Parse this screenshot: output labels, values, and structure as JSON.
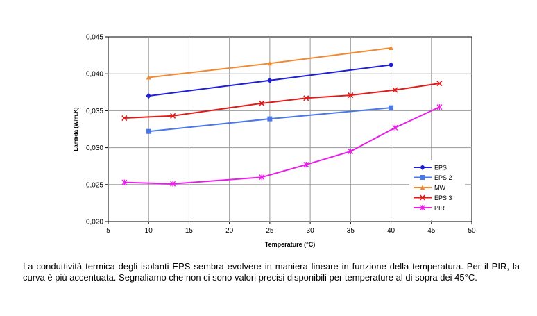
{
  "caption": "La conduttività termica degli isolanti EPS sembra evolvere in maniera lineare in funzione della temperatura. Per il PIR, la curva è più accentuata. Segnaliamo che non ci sono valori precisi disponibili per temperature al di sopra dei 45°C.",
  "chart_data": {
    "type": "line",
    "title": "",
    "xlabel": "Temperature (°C)",
    "ylabel": "Lambda (W/m.K)",
    "xlim": [
      5,
      50
    ],
    "ylim": [
      0.02,
      0.045
    ],
    "xticks": [
      5,
      10,
      15,
      20,
      25,
      30,
      35,
      40,
      45,
      50
    ],
    "yticks": [
      0.02,
      0.025,
      0.03,
      0.035,
      0.04,
      0.045
    ],
    "xtick_labels": [
      "5",
      "10",
      "15",
      "20",
      "25",
      "30",
      "35",
      "40",
      "45",
      "50"
    ],
    "ytick_labels": [
      "0,020",
      "0,025",
      "0,030",
      "0,035",
      "0,040",
      "0,045"
    ],
    "grid": true,
    "legend": "bottom-right",
    "series": [
      {
        "name": "EPS",
        "color": "#1f1fd6",
        "marker": "diamond",
        "x": [
          10,
          25,
          40
        ],
        "y": [
          0.037,
          0.0391,
          0.0412
        ]
      },
      {
        "name": "EPS 2",
        "color": "#4a78e6",
        "marker": "square",
        "x": [
          10,
          25,
          40
        ],
        "y": [
          0.0322,
          0.0339,
          0.0354
        ]
      },
      {
        "name": "MW",
        "color": "#f08a32",
        "marker": "triangle",
        "x": [
          10,
          25,
          40
        ],
        "y": [
          0.0395,
          0.0414,
          0.0435
        ]
      },
      {
        "name": "EPS 3",
        "color": "#e21a1a",
        "marker": "x",
        "x": [
          7,
          13,
          24,
          29.5,
          35,
          40.5,
          46
        ],
        "y": [
          0.034,
          0.0343,
          0.036,
          0.0367,
          0.0371,
          0.0378,
          0.0387
        ]
      },
      {
        "name": "PIR",
        "color": "#e81ee8",
        "marker": "star",
        "x": [
          7,
          13,
          24,
          29.5,
          35,
          40.5,
          46
        ],
        "y": [
          0.0253,
          0.0251,
          0.026,
          0.0277,
          0.0295,
          0.0327,
          0.0355
        ]
      }
    ]
  }
}
